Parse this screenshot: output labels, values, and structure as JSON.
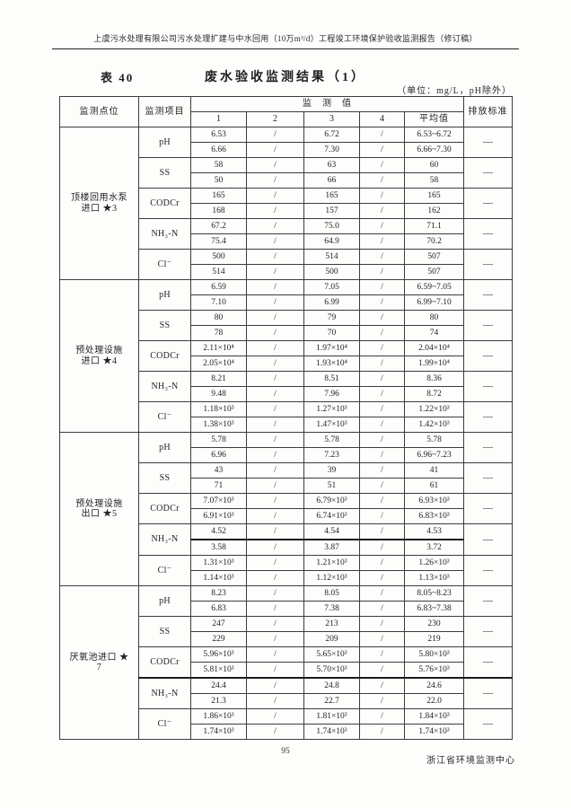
{
  "running_header": "上虞污水处理有限公司污水处理扩建与中水回用（10万m³/d）工程竣工环境保护验收监测报告（修订稿）",
  "table": {
    "label": "表 40",
    "title": "废水验收监测结果（1）",
    "unit_note": "（单位：mg/L，pH除外）",
    "header": {
      "site": "监测点位",
      "item": "监测项目",
      "values_group": "监　测　值",
      "value_cols": [
        "1",
        "2",
        "3",
        "4",
        "平均值"
      ],
      "standard": "排放标准"
    },
    "blocks": [
      {
        "site": "顶楼回用水泵\n进口 ★3",
        "items": [
          {
            "name": "pH",
            "standard": "—",
            "rows": [
              [
                "6.53",
                "/",
                "6.72",
                "/",
                "6.53~6.72"
              ],
              [
                "6.66",
                "/",
                "7.30",
                "/",
                "6.66~7.30"
              ]
            ]
          },
          {
            "name": "SS",
            "standard": "—",
            "rows": [
              [
                "58",
                "/",
                "63",
                "/",
                "60"
              ],
              [
                "50",
                "/",
                "66",
                "/",
                "58"
              ]
            ]
          },
          {
            "name": "CODCr",
            "standard": "—",
            "rows": [
              [
                "165",
                "/",
                "165",
                "/",
                "165"
              ],
              [
                "168",
                "/",
                "157",
                "/",
                "162"
              ]
            ]
          },
          {
            "name": "NH₃-N",
            "standard": "—",
            "rows": [
              [
                "67.2",
                "/",
                "75.0",
                "/",
                "71.1"
              ],
              [
                "75.4",
                "/",
                "64.9",
                "/",
                "70.2"
              ]
            ]
          },
          {
            "name": "Cl⁻",
            "standard": "—",
            "rows": [
              [
                "500",
                "/",
                "514",
                "/",
                "507"
              ],
              [
                "514",
                "/",
                "500",
                "/",
                "507"
              ]
            ]
          }
        ]
      },
      {
        "site": "预处理设施\n进口 ★4",
        "items": [
          {
            "name": "pH",
            "standard": "—",
            "rows": [
              [
                "6.59",
                "/",
                "7.05",
                "/",
                "6.59~7.05"
              ],
              [
                "7.10",
                "/",
                "6.99",
                "/",
                "6.99~7.10"
              ]
            ]
          },
          {
            "name": "SS",
            "standard": "—",
            "rows": [
              [
                "80",
                "/",
                "79",
                "/",
                "80"
              ],
              [
                "78",
                "/",
                "70",
                "/",
                "74"
              ]
            ]
          },
          {
            "name": "CODCr",
            "standard": "—",
            "rows": [
              [
                "2.11×10⁴",
                "/",
                "1.97×10⁴",
                "/",
                "2.04×10⁴"
              ],
              [
                "2.05×10⁴",
                "/",
                "1.93×10⁴",
                "/",
                "1.99×10⁴"
              ]
            ]
          },
          {
            "name": "NH₃-N",
            "standard": "—",
            "rows": [
              [
                "8.21",
                "/",
                "8.51",
                "/",
                "8.36"
              ],
              [
                "9.48",
                "/",
                "7.96",
                "/",
                "8.72"
              ]
            ]
          },
          {
            "name": "Cl⁻",
            "standard": "—",
            "rows": [
              [
                "1.18×10³",
                "/",
                "1.27×10³",
                "/",
                "1.22×10³"
              ],
              [
                "1.38×10³",
                "/",
                "1.47×10³",
                "/",
                "1.42×10³"
              ]
            ]
          }
        ]
      },
      {
        "site": "预处理设施\n出口 ★5",
        "items": [
          {
            "name": "pH",
            "standard": "—",
            "rows": [
              [
                "5.78",
                "/",
                "5.78",
                "/",
                "5.78"
              ],
              [
                "6.96",
                "/",
                "7.23",
                "/",
                "6.96~7.23"
              ]
            ]
          },
          {
            "name": "SS",
            "standard": "—",
            "rows": [
              [
                "43",
                "/",
                "39",
                "/",
                "41"
              ],
              [
                "71",
                "/",
                "51",
                "/",
                "61"
              ]
            ]
          },
          {
            "name": "CODCr",
            "standard": "—",
            "rows": [
              [
                "7.07×10³",
                "/",
                "6.79×10³",
                "/",
                "6.93×10³"
              ],
              [
                "6.91×10³",
                "/",
                "6.74×10³",
                "/",
                "6.83×10³"
              ]
            ]
          },
          {
            "name": "NH₃-N",
            "standard": "—",
            "thick_top_rows": [
              1
            ],
            "rows": [
              [
                "4.52",
                "/",
                "4.54",
                "/",
                "4.53"
              ],
              [
                "3.58",
                "/",
                "3.87",
                "/",
                "3.72"
              ]
            ]
          },
          {
            "name": "Cl⁻",
            "standard": "—",
            "rows": [
              [
                "1.31×10³",
                "/",
                "1.21×10³",
                "/",
                "1.26×10³"
              ],
              [
                "1.14×10³",
                "/",
                "1.12×10³",
                "/",
                "1.13×10³"
              ]
            ]
          }
        ]
      },
      {
        "site": "厌氧池进口 ★\n7",
        "items": [
          {
            "name": "pH",
            "standard": "—",
            "rows": [
              [
                "8.23",
                "/",
                "8.05",
                "/",
                "8.05~8.23"
              ],
              [
                "6.83",
                "/",
                "7.38",
                "/",
                "6.83~7.38"
              ]
            ]
          },
          {
            "name": "SS",
            "standard": "—",
            "rows": [
              [
                "247",
                "/",
                "213",
                "/",
                "230"
              ],
              [
                "229",
                "/",
                "209",
                "/",
                "219"
              ]
            ]
          },
          {
            "name": "CODCr",
            "standard": "—",
            "rows": [
              [
                "5.96×10³",
                "/",
                "5.65×10³",
                "/",
                "5.80×10³"
              ],
              [
                "5.81×10³",
                "/",
                "5.70×10³",
                "/",
                "5.76×10³"
              ]
            ]
          },
          {
            "name": "NH₃-N",
            "standard": "—",
            "thick_top_rows": [
              0
            ],
            "rows": [
              [
                "24.4",
                "/",
                "24.8",
                "/",
                "24.6"
              ],
              [
                "21.3",
                "/",
                "22.7",
                "/",
                "22.0"
              ]
            ]
          },
          {
            "name": "Cl⁻",
            "standard": "—",
            "rows": [
              [
                "1.86×10³",
                "/",
                "1.81×10³",
                "/",
                "1.84×10³"
              ],
              [
                "1.74×10³",
                "/",
                "1.74×10³",
                "/",
                "1.74×10³"
              ]
            ]
          }
        ]
      }
    ]
  },
  "footer": {
    "page_number": "95",
    "org": "浙江省环境监测中心"
  }
}
